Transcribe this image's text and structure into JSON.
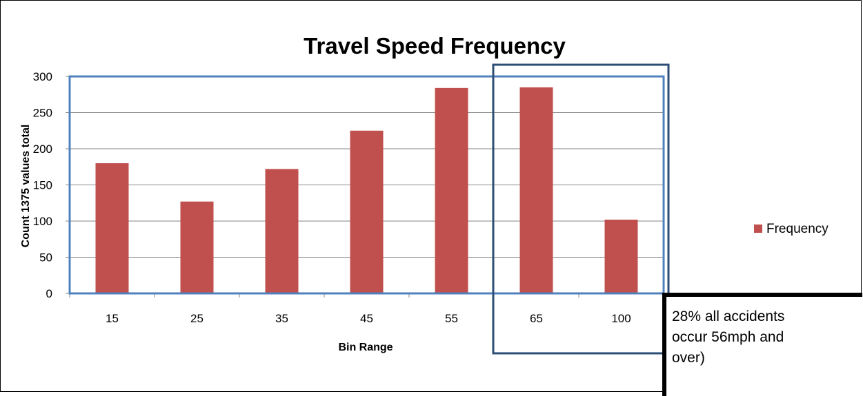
{
  "chart_data": {
    "type": "bar",
    "title": "Travel Speed Frequency",
    "xlabel": "Bin Range",
    "ylabel": "Count 1375 values total",
    "categories": [
      "15",
      "25",
      "35",
      "45",
      "55",
      "65",
      "100"
    ],
    "series": [
      {
        "name": "Frequency",
        "values": [
          180,
          127,
          172,
          225,
          284,
          285,
          102
        ],
        "color": "#C0504D"
      }
    ],
    "ylim": [
      0,
      300
    ],
    "yticks": [
      "0",
      "50",
      "100",
      "150",
      "200",
      "250",
      "300"
    ],
    "grid": true,
    "legend_position": "right"
  },
  "annotation": {
    "text": "28% all accidents\noccur 56mph and\nover)"
  },
  "colors": {
    "bar": "#C0504D",
    "highlight_box_light": "#4F81BD",
    "highlight_box_dark": "#2C4D75",
    "gridline": "#868686"
  }
}
